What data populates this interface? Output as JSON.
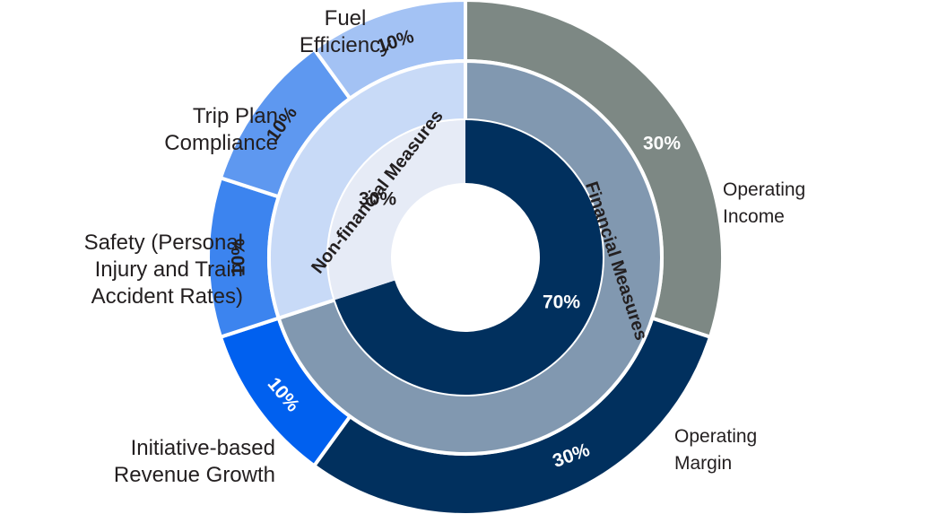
{
  "chart_data": {
    "type": "pie",
    "rings": {
      "inner": [
        {
          "name": "Financial Measures",
          "value": 70,
          "label": "70%",
          "color": "#01305e",
          "text_color": "#ffffff"
        },
        {
          "name": "Non-financial Measures",
          "value": 30,
          "label": "30%",
          "color": "#e6ebf6",
          "text_color": "#231f20"
        }
      ],
      "middle": [
        {
          "name": "Financial Measures",
          "value": 70,
          "label": "Financial Measures",
          "color": "#8198b0",
          "text_color": "#231f20"
        },
        {
          "name": "Non-financial Measures",
          "value": 30,
          "label": "Non-financial Measures",
          "color": "#c8daf7",
          "text_color": "#231f20"
        }
      ],
      "outer": [
        {
          "name": "Operating Income",
          "value": 30,
          "label": "30%",
          "color": "#7d8884",
          "text_color": "#ffffff"
        },
        {
          "name": "Operating Margin",
          "value": 30,
          "label": "30%",
          "color": "#01305e",
          "text_color": "#ffffff"
        },
        {
          "name": "Initiative-based Revenue Growth",
          "value": 10,
          "label": "10%",
          "color": "#0060ef",
          "text_color": "#ffffff"
        },
        {
          "name": "Safety (Personal Injury and Train Accident Rates)",
          "value": 10,
          "label": "10%",
          "color": "#3c84ef",
          "text_color": "#231f20"
        },
        {
          "name": "Trip Plan Compliance",
          "value": 10,
          "label": "10%",
          "color": "#5e98f0",
          "text_color": "#231f20"
        },
        {
          "name": "Fuel Efficiency",
          "value": 10,
          "label": "10%",
          "color": "#a3c2f4",
          "text_color": "#231f20"
        }
      ]
    },
    "external_labels": {
      "operating_income": "Operating\nIncome",
      "operating_margin": "Operating\nMargin",
      "revenue_growth": "Initiative-based\nRevenue Growth",
      "safety": "Safety (Personal\nInjury and Train\nAccident Rates)",
      "trip_plan": "Trip Plan\nCompliance",
      "fuel": "Fuel\nEfficiency"
    }
  }
}
